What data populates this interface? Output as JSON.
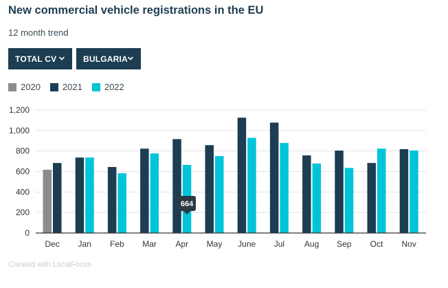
{
  "header": {
    "title": "New commercial vehicle registrations in the EU",
    "subtitle": "12 month trend"
  },
  "filters": {
    "vehicle_type": "TOTAL CV",
    "country": "BULGARIA"
  },
  "colors": {
    "2020": "#8c8c8c",
    "2021": "#1c3d52",
    "2022": "#00c4d9",
    "grid": "#e3e3e3",
    "axis": "#333333",
    "tooltip_bg": "#2b3a45"
  },
  "tooltip": {
    "value": "664",
    "series": "2022",
    "category": "Apr"
  },
  "chart_data": {
    "type": "bar",
    "title": "New commercial vehicle registrations in the EU",
    "subtitle": "12 month trend",
    "categories": [
      "Dec",
      "Jan",
      "Feb",
      "Mar",
      "Apr",
      "May",
      "June",
      "Jul",
      "Aug",
      "Sep",
      "Oct",
      "Nov"
    ],
    "series": [
      {
        "name": "2020",
        "values": [
          617,
          null,
          null,
          null,
          null,
          null,
          null,
          null,
          null,
          null,
          null,
          null
        ]
      },
      {
        "name": "2021",
        "values": [
          683,
          736,
          644,
          823,
          916,
          857,
          1125,
          1077,
          757,
          804,
          683,
          818
        ]
      },
      {
        "name": "2022",
        "values": [
          null,
          736,
          583,
          776,
          664,
          750,
          928,
          878,
          678,
          635,
          823,
          805
        ]
      }
    ],
    "yticks": [
      "0",
      "200",
      "400",
      "600",
      "800",
      "1,000",
      "1,200"
    ],
    "ylim": [
      0,
      1200
    ],
    "xlabel": "",
    "ylabel": "",
    "grid": true,
    "legend": "top-left"
  },
  "footer": {
    "credit": "Created with LocalFocus"
  }
}
